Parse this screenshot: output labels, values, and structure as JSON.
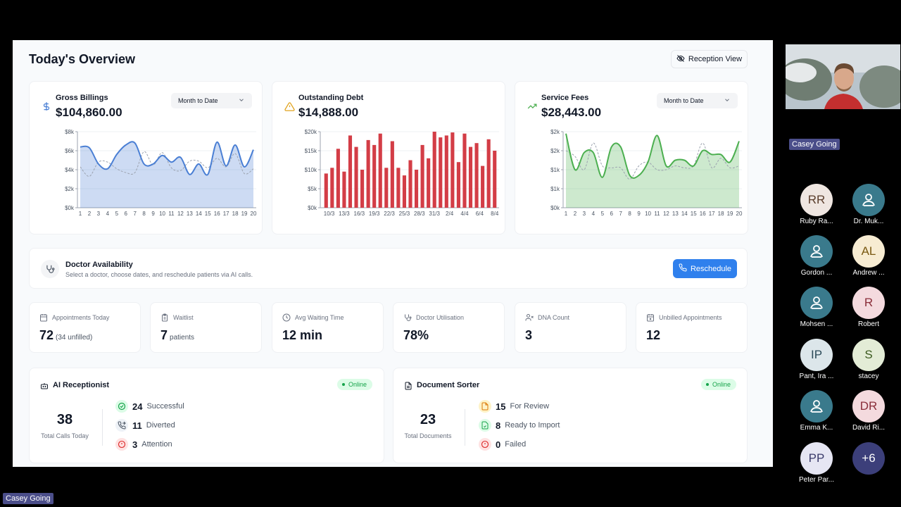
{
  "header": {
    "title": "Today's Overview",
    "reception_view_label": "Reception View"
  },
  "colors": {
    "blue": "#4a7fd4",
    "red": "#d33d46",
    "green": "#4caf50",
    "accent": "#2f80ed"
  },
  "gross_billings": {
    "title": "Gross Billings",
    "value": "$104,860.00",
    "select": "Month to Date",
    "icon": "dollar-icon",
    "chart_data": {
      "type": "area",
      "x": [
        "1",
        "2",
        "3",
        "4",
        "5",
        "6",
        "7",
        "8",
        "9",
        "10",
        "11",
        "12",
        "13",
        "14",
        "15",
        "16",
        "17",
        "18",
        "19",
        "20"
      ],
      "y_ticks": [
        "$0k",
        "$2k",
        "$4k",
        "$6k",
        "$8k"
      ],
      "ylim": [
        0,
        8
      ],
      "series": [
        {
          "values": [
            6.4,
            6.3,
            4.6,
            4.1,
            5.6,
            6.6,
            6.8,
            4.6,
            4.6,
            5.5,
            4.8,
            5.3,
            3.5,
            4.6,
            3.5,
            6.9,
            4.4,
            6.6,
            4.3,
            6.1
          ]
        },
        {
          "values": [
            4.3,
            3.3,
            4.8,
            4.8,
            4.1,
            3.7,
            3.7,
            5.9,
            4.5,
            5.8,
            4.2,
            3.9,
            4.9,
            4.9,
            4.2,
            5.2,
            4.3,
            5.7,
            3.6,
            4.1
          ]
        }
      ]
    }
  },
  "outstanding_debt": {
    "title": "Outstanding Debt",
    "value": "$14,888.00",
    "icon": "warning-icon",
    "chart_data": {
      "type": "bar",
      "x_tick_labels": [
        "10/3",
        "13/3",
        "16/3",
        "19/3",
        "22/3",
        "25/3",
        "28/3",
        "31/3",
        "2/4",
        "4/4",
        "6/4",
        "8/4"
      ],
      "y_ticks": [
        "$0k",
        "$5k",
        "$10k",
        "$15k",
        "$20k"
      ],
      "ylim": [
        0,
        20
      ],
      "values": [
        9,
        10.5,
        15.5,
        9.5,
        19,
        16,
        10,
        17.8,
        16.5,
        19.5,
        10.5,
        17.5,
        10.5,
        8.5,
        12.5,
        10,
        16.5,
        13,
        20,
        18.5,
        19,
        19.8,
        12,
        19.5,
        16,
        17,
        11,
        18,
        15
      ]
    }
  },
  "service_fees": {
    "title": "Service Fees",
    "value": "$28,443.00",
    "select": "Month to Date",
    "icon": "trend-up-icon",
    "chart_data": {
      "type": "area",
      "x": [
        "1",
        "2",
        "3",
        "4",
        "5",
        "6",
        "7",
        "8",
        "9",
        "10",
        "11",
        "12",
        "13",
        "14",
        "15",
        "16",
        "17",
        "18",
        "19",
        "20"
      ],
      "y_ticks": [
        "$0k",
        "$1k",
        "$1k",
        "$2k",
        "$2k"
      ],
      "ylim": [
        0,
        2
      ],
      "series": [
        {
          "values": [
            1.95,
            1.0,
            1.45,
            1.45,
            0.8,
            1.6,
            1.6,
            0.85,
            0.85,
            1.2,
            1.9,
            1.1,
            1.25,
            1.25,
            1.1,
            1.5,
            1.4,
            1.4,
            1.2,
            1.75
          ]
        },
        {
          "values": [
            1.5,
            1.35,
            1.0,
            1.7,
            1.1,
            1.05,
            1.05,
            0.75,
            1.1,
            1.2,
            1.0,
            1.0,
            1.1,
            1.05,
            1.1,
            1.7,
            1.05,
            1.3,
            1.05,
            1.1
          ]
        }
      ]
    }
  },
  "doctor_availability": {
    "title": "Doctor Availability",
    "subtitle": "Select a doctor, choose dates, and reschedule patients via AI calls.",
    "button": "Reschedule"
  },
  "stats": [
    {
      "label": "Appointments Today",
      "value": "72",
      "suffix": "(34 unfilled)",
      "icon": "calendar-icon"
    },
    {
      "label": "Waitlist",
      "value": "7",
      "suffix": "patients",
      "icon": "clipboard-icon"
    },
    {
      "label": "Avg Waiting Time",
      "value": "12 min",
      "suffix": "",
      "icon": "clock-icon"
    },
    {
      "label": "Doctor Utilisation",
      "value": "78%",
      "suffix": "",
      "icon": "stethoscope-icon"
    },
    {
      "label": "DNA Count",
      "value": "3",
      "suffix": "",
      "icon": "user-x-icon"
    },
    {
      "label": "Unbilled Appointments",
      "value": "12",
      "suffix": "",
      "icon": "calendar-x-icon"
    }
  ],
  "ai_receptionist": {
    "title": "AI Receptionist",
    "status": "Online",
    "total": "38",
    "total_label": "Total Calls Today",
    "rows": [
      {
        "count": "24",
        "label": "Successful"
      },
      {
        "count": "11",
        "label": "Diverted"
      },
      {
        "count": "3",
        "label": "Attention"
      }
    ]
  },
  "document_sorter": {
    "title": "Document Sorter",
    "status": "Online",
    "total": "23",
    "total_label": "Total Documents",
    "rows": [
      {
        "count": "15",
        "label": "For Review"
      },
      {
        "count": "8",
        "label": "Ready to Import"
      },
      {
        "count": "0",
        "label": "Failed"
      }
    ]
  },
  "meeting": {
    "presenter_tag": "Casey Going",
    "bottom_tag": "Casey Going",
    "participants": [
      {
        "initials": "RR",
        "name": "Ruby Ra...",
        "bg": "#efe6e1",
        "fg": "#5a3d2b"
      },
      {
        "initials": "",
        "name": "Dr. Muk...",
        "bg": "#3a7a8c",
        "fg": "#fff"
      },
      {
        "initials": "",
        "name": "Gordon ...",
        "bg": "#3a7a8c",
        "fg": "#fff"
      },
      {
        "initials": "AL",
        "name": "Andrew ...",
        "bg": "#f7ecd2",
        "fg": "#7a5a12"
      },
      {
        "initials": "",
        "name": "Mohsen ...",
        "bg": "#3a7a8c",
        "fg": "#fff"
      },
      {
        "initials": "R",
        "name": "Robert",
        "bg": "#f4dade",
        "fg": "#8a2e3a"
      },
      {
        "initials": "IP",
        "name": "Pant, Ira ...",
        "bg": "#dce6ea",
        "fg": "#2b4a58"
      },
      {
        "initials": "S",
        "name": "stacey",
        "bg": "#e3ecd6",
        "fg": "#3b5a1f"
      },
      {
        "initials": "",
        "name": "Emma K...",
        "bg": "#3a7a8c",
        "fg": "#fff"
      },
      {
        "initials": "DR",
        "name": "David Ri...",
        "bg": "#f4dade",
        "fg": "#8a2e3a"
      },
      {
        "initials": "PP",
        "name": "Peter Par...",
        "bg": "#e6e6f3",
        "fg": "#3a3a6a"
      },
      {
        "initials": "+6",
        "name": "",
        "bg": "#3c3f7a",
        "fg": "#fff"
      }
    ]
  }
}
